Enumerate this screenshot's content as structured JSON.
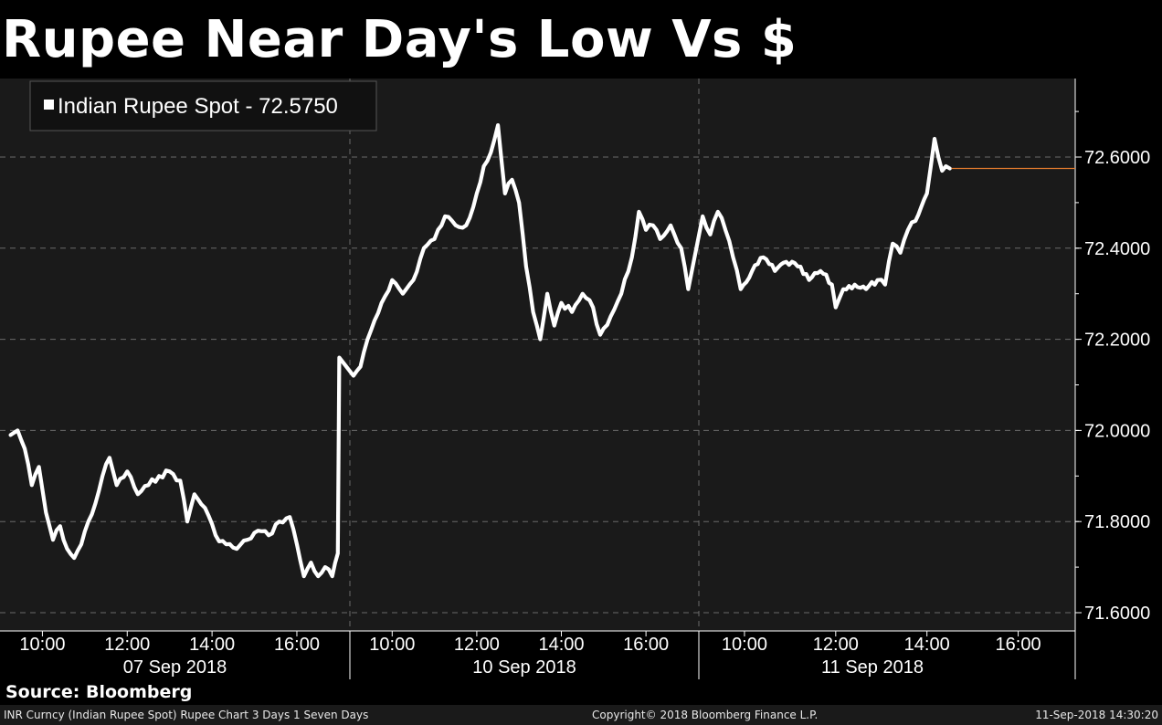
{
  "title": "Rupee Near Day's Low Vs $",
  "source": "Source: Bloomberg",
  "footer": {
    "left": "INR Curncy (Indian Rupee Spot) Rupee Chart 3 Days 1 Seven Days",
    "center": "Copyright© 2018 Bloomberg Finance L.P.",
    "right": "11-Sep-2018 14:30:20"
  },
  "colors": {
    "background": "#000000",
    "plot_background": "#1a1a1a",
    "series": "#ffffff",
    "last_price_line": "#e07a2e",
    "grid": "#6a6a6a"
  },
  "chart_data": {
    "type": "line",
    "title": "Rupee Near Day's Low Vs $",
    "xlabel": "",
    "ylabel": "",
    "ylim": [
      71.57,
      72.74
    ],
    "y_ticks": [
      "72.6000",
      "72.4000",
      "72.2000",
      "72.0000",
      "71.8000",
      "71.6000"
    ],
    "y_axis_side": "right",
    "grid": true,
    "legend_position": "top-left",
    "last_value": 72.575,
    "days": [
      {
        "label": "07 Sep 2018",
        "ticks": [
          "10:00",
          "12:00",
          "14:00",
          "16:00"
        ]
      },
      {
        "label": "10 Sep 2018",
        "ticks": [
          "10:00",
          "12:00",
          "14:00",
          "16:00"
        ]
      },
      {
        "label": "11 Sep 2018",
        "ticks": [
          "10:00",
          "12:00",
          "14:00",
          "16:00"
        ]
      }
    ],
    "series": [
      {
        "name": "Indian Rupee Spot - 72.5750",
        "points": [
          {
            "day": 0,
            "t": "09:15",
            "v": 71.99
          },
          {
            "day": 0,
            "t": "09:25",
            "v": 72.0
          },
          {
            "day": 0,
            "t": "09:35",
            "v": 71.96
          },
          {
            "day": 0,
            "t": "09:45",
            "v": 71.88
          },
          {
            "day": 0,
            "t": "09:55",
            "v": 71.92
          },
          {
            "day": 0,
            "t": "10:05",
            "v": 71.82
          },
          {
            "day": 0,
            "t": "10:15",
            "v": 71.76
          },
          {
            "day": 0,
            "t": "10:25",
            "v": 71.79
          },
          {
            "day": 0,
            "t": "10:35",
            "v": 71.74
          },
          {
            "day": 0,
            "t": "10:45",
            "v": 71.72
          },
          {
            "day": 0,
            "t": "10:55",
            "v": 71.75
          },
          {
            "day": 0,
            "t": "11:05",
            "v": 71.8
          },
          {
            "day": 0,
            "t": "11:15",
            "v": 71.84
          },
          {
            "day": 0,
            "t": "11:25",
            "v": 71.9
          },
          {
            "day": 0,
            "t": "11:35",
            "v": 71.94
          },
          {
            "day": 0,
            "t": "11:45",
            "v": 71.88
          },
          {
            "day": 0,
            "t": "12:00",
            "v": 71.91
          },
          {
            "day": 0,
            "t": "12:15",
            "v": 71.86
          },
          {
            "day": 0,
            "t": "12:30",
            "v": 71.88
          },
          {
            "day": 0,
            "t": "12:45",
            "v": 71.9
          },
          {
            "day": 0,
            "t": "13:00",
            "v": 71.91
          },
          {
            "day": 0,
            "t": "13:15",
            "v": 71.89
          },
          {
            "day": 0,
            "t": "13:25",
            "v": 71.8
          },
          {
            "day": 0,
            "t": "13:35",
            "v": 71.86
          },
          {
            "day": 0,
            "t": "13:50",
            "v": 71.83
          },
          {
            "day": 0,
            "t": "14:05",
            "v": 71.77
          },
          {
            "day": 0,
            "t": "14:20",
            "v": 71.75
          },
          {
            "day": 0,
            "t": "14:35",
            "v": 71.74
          },
          {
            "day": 0,
            "t": "14:50",
            "v": 71.76
          },
          {
            "day": 0,
            "t": "15:05",
            "v": 71.78
          },
          {
            "day": 0,
            "t": "15:20",
            "v": 71.77
          },
          {
            "day": 0,
            "t": "15:35",
            "v": 71.8
          },
          {
            "day": 0,
            "t": "15:50",
            "v": 71.81
          },
          {
            "day": 0,
            "t": "16:00",
            "v": 71.75
          },
          {
            "day": 0,
            "t": "16:10",
            "v": 71.68
          },
          {
            "day": 0,
            "t": "16:20",
            "v": 71.71
          },
          {
            "day": 0,
            "t": "16:30",
            "v": 71.68
          },
          {
            "day": 0,
            "t": "16:40",
            "v": 71.7
          },
          {
            "day": 0,
            "t": "16:50",
            "v": 71.68
          },
          {
            "day": 0,
            "t": "16:58",
            "v": 71.73
          },
          {
            "day": 0,
            "t": "17:00",
            "v": 72.16
          },
          {
            "day": 1,
            "t": "09:05",
            "v": 72.12
          },
          {
            "day": 1,
            "t": "09:15",
            "v": 72.14
          },
          {
            "day": 1,
            "t": "09:30",
            "v": 72.22
          },
          {
            "day": 1,
            "t": "09:45",
            "v": 72.28
          },
          {
            "day": 1,
            "t": "10:00",
            "v": 72.33
          },
          {
            "day": 1,
            "t": "10:15",
            "v": 72.3
          },
          {
            "day": 1,
            "t": "10:30",
            "v": 72.33
          },
          {
            "day": 1,
            "t": "10:45",
            "v": 72.4
          },
          {
            "day": 1,
            "t": "11:00",
            "v": 72.42
          },
          {
            "day": 1,
            "t": "11:15",
            "v": 72.47
          },
          {
            "day": 1,
            "t": "11:30",
            "v": 72.45
          },
          {
            "day": 1,
            "t": "11:45",
            "v": 72.45
          },
          {
            "day": 1,
            "t": "12:00",
            "v": 72.52
          },
          {
            "day": 1,
            "t": "12:10",
            "v": 72.58
          },
          {
            "day": 1,
            "t": "12:20",
            "v": 72.61
          },
          {
            "day": 1,
            "t": "12:30",
            "v": 72.67
          },
          {
            "day": 1,
            "t": "12:40",
            "v": 72.52
          },
          {
            "day": 1,
            "t": "12:50",
            "v": 72.55
          },
          {
            "day": 1,
            "t": "13:00",
            "v": 72.5
          },
          {
            "day": 1,
            "t": "13:10",
            "v": 72.36
          },
          {
            "day": 1,
            "t": "13:20",
            "v": 72.26
          },
          {
            "day": 1,
            "t": "13:30",
            "v": 72.2
          },
          {
            "day": 1,
            "t": "13:40",
            "v": 72.3
          },
          {
            "day": 1,
            "t": "13:50",
            "v": 72.23
          },
          {
            "day": 1,
            "t": "14:00",
            "v": 72.28
          },
          {
            "day": 1,
            "t": "14:15",
            "v": 72.26
          },
          {
            "day": 1,
            "t": "14:30",
            "v": 72.3
          },
          {
            "day": 1,
            "t": "14:45",
            "v": 72.27
          },
          {
            "day": 1,
            "t": "14:55",
            "v": 72.21
          },
          {
            "day": 1,
            "t": "15:10",
            "v": 72.25
          },
          {
            "day": 1,
            "t": "15:25",
            "v": 72.3
          },
          {
            "day": 1,
            "t": "15:40",
            "v": 72.38
          },
          {
            "day": 1,
            "t": "15:50",
            "v": 72.48
          },
          {
            "day": 1,
            "t": "16:00",
            "v": 72.44
          },
          {
            "day": 1,
            "t": "16:10",
            "v": 72.45
          },
          {
            "day": 1,
            "t": "16:20",
            "v": 72.42
          },
          {
            "day": 1,
            "t": "16:35",
            "v": 72.45
          },
          {
            "day": 1,
            "t": "16:50",
            "v": 72.4
          },
          {
            "day": 1,
            "t": "17:00",
            "v": 72.31
          },
          {
            "day": 2,
            "t": "09:05",
            "v": 72.47
          },
          {
            "day": 2,
            "t": "09:15",
            "v": 72.43
          },
          {
            "day": 2,
            "t": "09:25",
            "v": 72.48
          },
          {
            "day": 2,
            "t": "09:35",
            "v": 72.44
          },
          {
            "day": 2,
            "t": "09:45",
            "v": 72.38
          },
          {
            "day": 2,
            "t": "09:55",
            "v": 72.31
          },
          {
            "day": 2,
            "t": "10:10",
            "v": 72.35
          },
          {
            "day": 2,
            "t": "10:25",
            "v": 72.38
          },
          {
            "day": 2,
            "t": "10:40",
            "v": 72.35
          },
          {
            "day": 2,
            "t": "10:55",
            "v": 72.37
          },
          {
            "day": 2,
            "t": "11:10",
            "v": 72.36
          },
          {
            "day": 2,
            "t": "11:25",
            "v": 72.33
          },
          {
            "day": 2,
            "t": "11:40",
            "v": 72.35
          },
          {
            "day": 2,
            "t": "11:55",
            "v": 72.32
          },
          {
            "day": 2,
            "t": "12:00",
            "v": 72.27
          },
          {
            "day": 2,
            "t": "12:10",
            "v": 72.31
          },
          {
            "day": 2,
            "t": "12:25",
            "v": 72.32
          },
          {
            "day": 2,
            "t": "12:40",
            "v": 72.31
          },
          {
            "day": 2,
            "t": "12:55",
            "v": 72.33
          },
          {
            "day": 2,
            "t": "13:05",
            "v": 72.32
          },
          {
            "day": 2,
            "t": "13:15",
            "v": 72.41
          },
          {
            "day": 2,
            "t": "13:25",
            "v": 72.39
          },
          {
            "day": 2,
            "t": "13:35",
            "v": 72.44
          },
          {
            "day": 2,
            "t": "13:45",
            "v": 72.46
          },
          {
            "day": 2,
            "t": "14:00",
            "v": 72.52
          },
          {
            "day": 2,
            "t": "14:10",
            "v": 72.64
          },
          {
            "day": 2,
            "t": "14:15",
            "v": 72.6
          },
          {
            "day": 2,
            "t": "14:20",
            "v": 72.57
          },
          {
            "day": 2,
            "t": "14:25",
            "v": 72.58
          },
          {
            "day": 2,
            "t": "14:30",
            "v": 72.575
          }
        ]
      }
    ]
  }
}
